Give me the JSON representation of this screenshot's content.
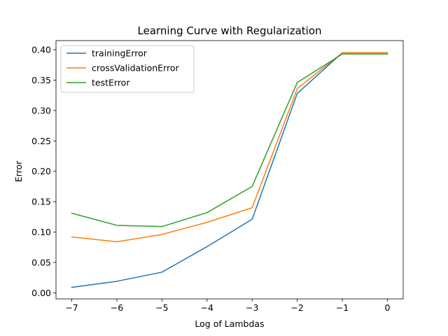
{
  "chart_data": {
    "type": "line",
    "title": "Learning Curve with Regularization",
    "xlabel": "Log of Lambdas",
    "ylabel": "Error",
    "x": [
      -7,
      -6,
      -5,
      -4,
      -3,
      -2,
      -1,
      0
    ],
    "xlim": [
      -7.35,
      0.35
    ],
    "ylim": [
      -0.01,
      0.415
    ],
    "xticks": [
      -7,
      -6,
      -5,
      -4,
      -3,
      -2,
      -1,
      0
    ],
    "xtick_labels": [
      "−7",
      "−6",
      "−5",
      "−4",
      "−3",
      "−2",
      "−1",
      "0"
    ],
    "yticks": [
      0.0,
      0.05,
      0.1,
      0.15,
      0.2,
      0.25,
      0.3,
      0.35,
      0.4
    ],
    "ytick_labels": [
      "0.00",
      "0.05",
      "0.10",
      "0.15",
      "0.20",
      "0.25",
      "0.30",
      "0.35",
      "0.40"
    ],
    "grid": false,
    "legend_position": "top-left",
    "series": [
      {
        "name": "trainingError",
        "color": "#1f77b4",
        "values": [
          0.009,
          0.019,
          0.034,
          0.076,
          0.121,
          0.328,
          0.395,
          0.395
        ]
      },
      {
        "name": "crossValidationError",
        "color": "#ff7f0e",
        "values": [
          0.092,
          0.084,
          0.096,
          0.116,
          0.14,
          0.336,
          0.395,
          0.395
        ]
      },
      {
        "name": "testError",
        "color": "#2ca02c",
        "values": [
          0.131,
          0.111,
          0.109,
          0.132,
          0.175,
          0.346,
          0.393,
          0.393
        ]
      }
    ]
  }
}
